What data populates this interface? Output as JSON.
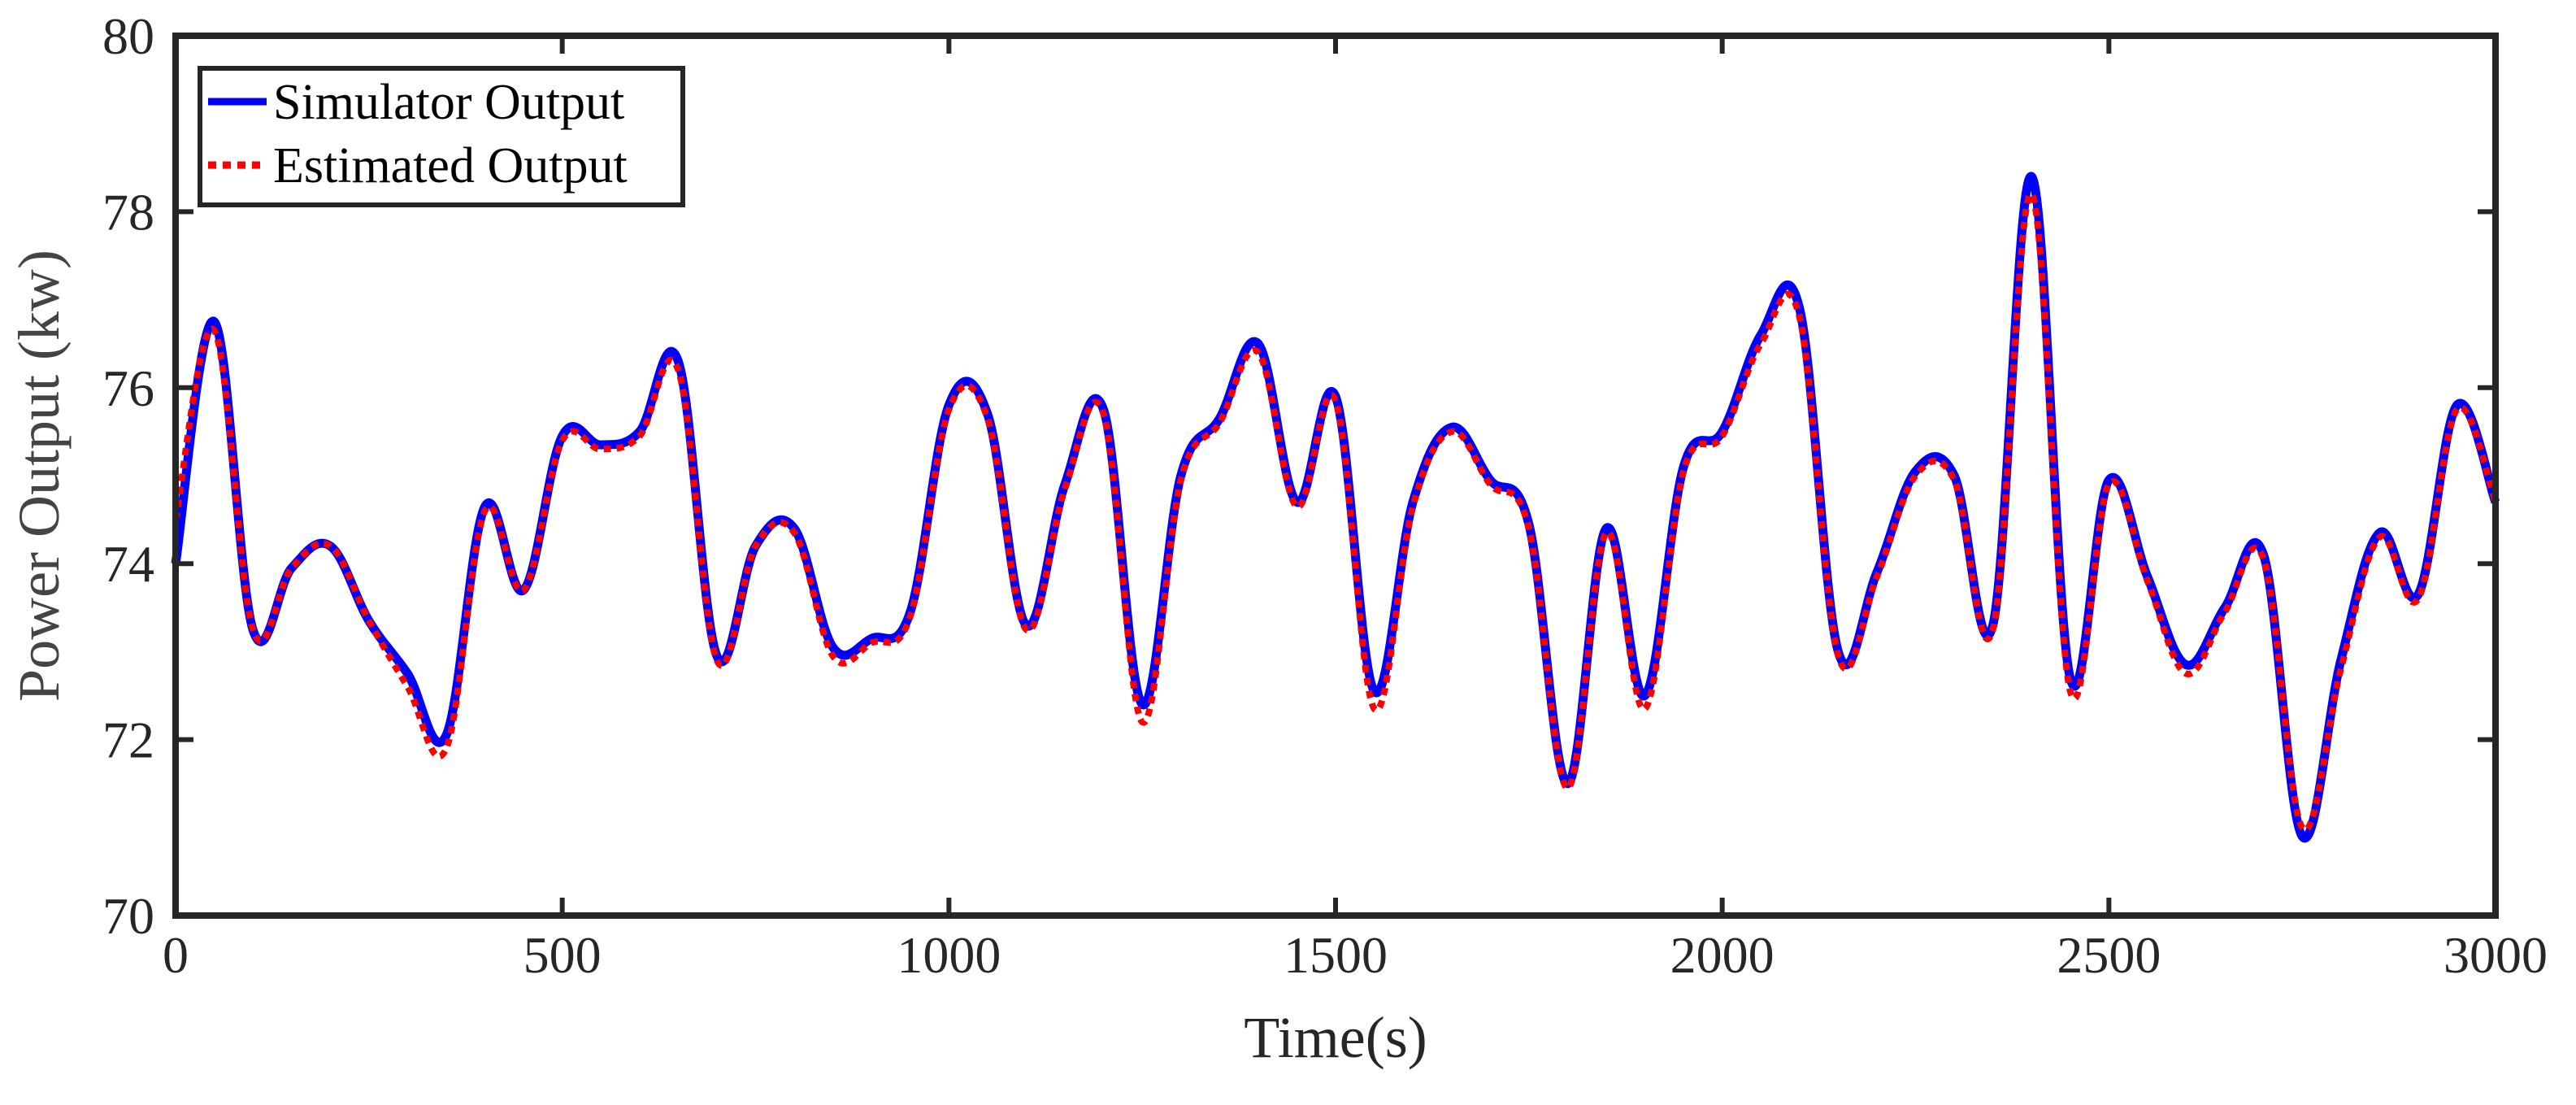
{
  "chart_data": {
    "type": "line",
    "title": "",
    "xlabel": "Time(s)",
    "ylabel": "Power Output (kw)",
    "xlim": [
      0,
      3000
    ],
    "ylim": [
      70,
      80
    ],
    "xticks": [
      0,
      500,
      1000,
      1500,
      2000,
      2500,
      3000
    ],
    "yticks": [
      70,
      72,
      74,
      76,
      78,
      80
    ],
    "grid": false,
    "legend_position": "upper left",
    "x": [
      0,
      50,
      100,
      150,
      200,
      250,
      300,
      350,
      400,
      450,
      500,
      550,
      600,
      650,
      700,
      750,
      800,
      850,
      900,
      950,
      1000,
      1050,
      1100,
      1150,
      1200,
      1250,
      1300,
      1350,
      1400,
      1450,
      1500,
      1550,
      1600,
      1650,
      1700,
      1750,
      1800,
      1850,
      1900,
      1950,
      2000,
      2050,
      2100,
      2150,
      2200,
      2250,
      2300,
      2350,
      2400,
      2450,
      2500,
      2550,
      2600,
      2650,
      2700,
      2750,
      2800,
      2850,
      2900,
      2950,
      3000
    ],
    "series": [
      {
        "name": "Simulator Output",
        "color": "#0000ff",
        "style": "solid",
        "values": [
          74.0,
          76.75,
          73.25,
          73.95,
          74.2,
          73.35,
          72.75,
          72.05,
          74.65,
          73.7,
          75.45,
          75.35,
          75.5,
          76.3,
          72.95,
          74.2,
          74.4,
          73.05,
          73.15,
          73.45,
          75.8,
          75.7,
          73.3,
          74.9,
          75.75,
          72.4,
          75.0,
          75.65,
          76.5,
          74.7,
          75.9,
          72.55,
          74.7,
          75.55,
          74.95,
          74.45,
          71.5,
          74.4,
          72.5,
          75.1,
          75.5,
          76.6,
          76.9,
          73.0,
          73.9,
          75.05,
          75.0,
          73.3,
          78.4,
          72.7,
          74.95,
          73.85,
          72.85,
          73.5,
          74.1,
          70.9,
          72.9,
          74.35,
          73.65,
          75.8,
          74.7
        ]
      },
      {
        "name": "Estimated Output",
        "color": "#ff0000",
        "style": "dotted",
        "values": [
          74.5,
          76.65,
          73.25,
          73.95,
          74.2,
          73.35,
          72.6,
          71.9,
          74.6,
          73.7,
          75.4,
          75.3,
          75.45,
          76.2,
          72.9,
          74.2,
          74.35,
          72.95,
          73.1,
          73.4,
          75.75,
          75.65,
          73.25,
          74.85,
          75.7,
          72.2,
          74.95,
          75.6,
          76.4,
          74.65,
          75.85,
          72.35,
          74.65,
          75.5,
          74.9,
          74.4,
          71.45,
          74.35,
          72.35,
          75.05,
          75.45,
          76.5,
          76.8,
          72.95,
          73.85,
          75.0,
          74.95,
          73.25,
          78.2,
          72.55,
          74.9,
          73.8,
          72.75,
          73.45,
          74.05,
          71.0,
          72.8,
          74.3,
          73.6,
          75.75,
          74.7
        ]
      }
    ]
  },
  "legend": {
    "items": [
      {
        "label": "Simulator Output",
        "color": "#0000ff",
        "style": "solid"
      },
      {
        "label": "Estimated Output",
        "color": "#ff0000",
        "style": "dotted"
      }
    ]
  },
  "colors": {
    "axis": "#262626",
    "simulator": "#0000ff",
    "estimated": "#ff0000",
    "ylabel": "#444444"
  }
}
